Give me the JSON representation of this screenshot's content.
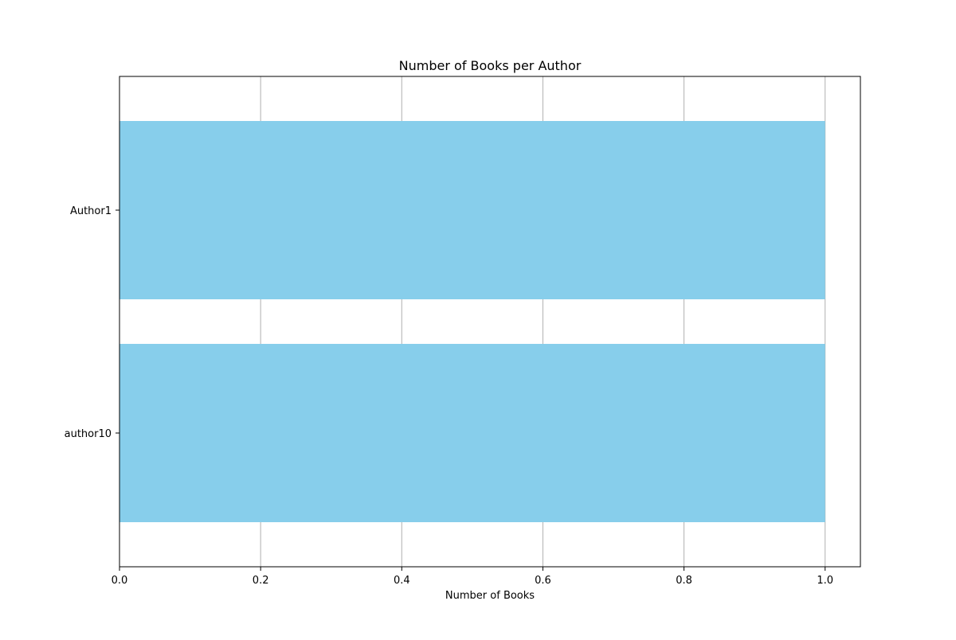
{
  "chart_data": {
    "type": "bar",
    "orientation": "horizontal",
    "title": "Number of Books per Author",
    "xlabel": "Number of Books",
    "ylabel": "",
    "categories": [
      "Author1",
      "author10"
    ],
    "values": [
      1,
      1
    ],
    "xlim": [
      0,
      1.05
    ],
    "xticks": [
      0.0,
      0.2,
      0.4,
      0.6,
      0.8,
      1.0
    ],
    "xtick_labels": [
      "0.0",
      "0.2",
      "0.4",
      "0.6",
      "0.8",
      "1.0"
    ],
    "grid": "x-axis only",
    "legend": "none",
    "bar_color": "#87CEEB",
    "grid_color": "#b0b0b0"
  }
}
